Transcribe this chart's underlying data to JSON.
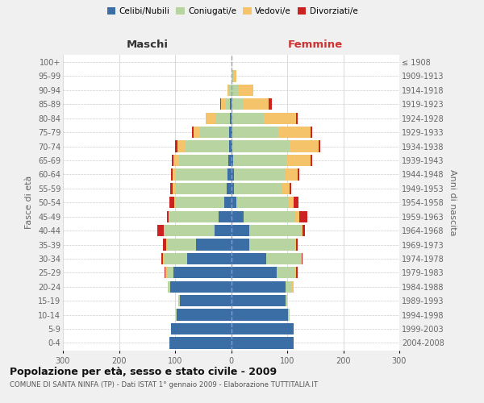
{
  "age_groups": [
    "0-4",
    "5-9",
    "10-14",
    "15-19",
    "20-24",
    "25-29",
    "30-34",
    "35-39",
    "40-44",
    "45-49",
    "50-54",
    "55-59",
    "60-64",
    "65-69",
    "70-74",
    "75-79",
    "80-84",
    "85-89",
    "90-94",
    "95-99",
    "100+"
  ],
  "birth_years": [
    "2004-2008",
    "1999-2003",
    "1994-1998",
    "1989-1993",
    "1984-1988",
    "1979-1983",
    "1974-1978",
    "1969-1973",
    "1964-1968",
    "1959-1963",
    "1954-1958",
    "1949-1953",
    "1944-1948",
    "1939-1943",
    "1934-1938",
    "1929-1933",
    "1924-1928",
    "1919-1923",
    "1914-1918",
    "1909-1913",
    "≤ 1908"
  ],
  "maschi_celibi": [
    110,
    107,
    97,
    92,
    108,
    103,
    78,
    62,
    30,
    22,
    12,
    8,
    7,
    5,
    3,
    3,
    2,
    2,
    0,
    0,
    0
  ],
  "maschi_coniugati": [
    0,
    0,
    2,
    2,
    5,
    12,
    42,
    52,
    88,
    88,
    88,
    92,
    92,
    88,
    78,
    52,
    25,
    8,
    3,
    0,
    0
  ],
  "maschi_vedovi": [
    0,
    0,
    0,
    0,
    0,
    2,
    2,
    2,
    2,
    2,
    2,
    4,
    6,
    10,
    14,
    12,
    18,
    8,
    3,
    0,
    0
  ],
  "maschi_divorziati": [
    0,
    0,
    0,
    0,
    0,
    2,
    3,
    5,
    12,
    3,
    8,
    5,
    2,
    3,
    5,
    3,
    0,
    2,
    0,
    0,
    0
  ],
  "femmine_nubili": [
    112,
    112,
    102,
    97,
    97,
    82,
    62,
    32,
    32,
    22,
    10,
    5,
    5,
    3,
    2,
    2,
    0,
    0,
    0,
    0,
    0
  ],
  "femmine_coniugate": [
    0,
    0,
    2,
    3,
    12,
    32,
    62,
    82,
    92,
    92,
    92,
    87,
    92,
    97,
    102,
    82,
    58,
    22,
    12,
    3,
    0
  ],
  "femmine_vedove": [
    0,
    0,
    0,
    0,
    2,
    2,
    2,
    2,
    3,
    7,
    10,
    12,
    22,
    42,
    52,
    58,
    58,
    45,
    28,
    7,
    0
  ],
  "femmine_divorziate": [
    0,
    0,
    0,
    0,
    0,
    2,
    2,
    3,
    5,
    15,
    8,
    3,
    3,
    2,
    3,
    2,
    2,
    5,
    0,
    0,
    0
  ],
  "color_celibi": "#3a6ea5",
  "color_coniugati": "#b8d4a0",
  "color_vedovi": "#f5c46a",
  "color_divorziati": "#cc2222",
  "title": "Popolazione per età, sesso e stato civile - 2009",
  "subtitle": "COMUNE DI SANTA NINFA (TP) - Dati ISTAT 1° gennaio 2009 - Elaborazione TUTTITALIA.IT",
  "legend_labels": [
    "Celibi/Nubili",
    "Coniugati/e",
    "Vedovi/e",
    "Divorziati/e"
  ],
  "xlim": 300,
  "bg_color": "#f0f0f0",
  "plot_bg_color": "#ffffff",
  "grid_color": "#cccccc",
  "label_maschi_color": "#333333",
  "label_femmine_color": "#cc3333"
}
